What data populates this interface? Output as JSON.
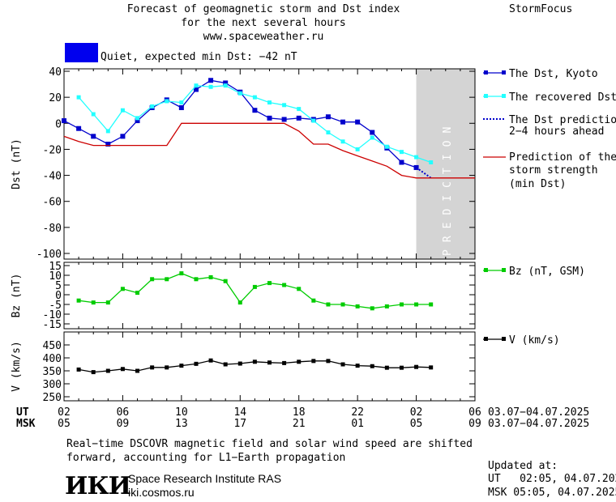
{
  "header": {
    "title_line1": "Forecast of geomagnetic storm and Dst index",
    "title_line2": "for the next several hours",
    "title_line3": "www.spaceweather.ru",
    "brand": "StormFocus",
    "status_text": "Quiet, expected min Dst: −42 nT",
    "status_color": "#0000ee"
  },
  "colors": {
    "dst_kyoto": "#0000cc",
    "dst_recovered": "#22ffff",
    "dst_prediction": "#0000cc",
    "storm_strength": "#cc0000",
    "bz": "#00cc00",
    "v": "#000000",
    "prediction_band": "#d4d4d4"
  },
  "legend": {
    "dst_kyoto": "The Dst, Kyoto",
    "dst_recovered": "The recovered Dst",
    "dst_prediction_l1": "The Dst prediction",
    "dst_prediction_l2": "2−4 hours ahead",
    "storm_l1": "Prediction of the",
    "storm_l2": "storm strength",
    "storm_l3": "(min Dst)",
    "bz": "Bz (nT, GSM)",
    "v": "V (km/s)"
  },
  "prediction_label": "PREDICTION",
  "x_axis": {
    "ut_label": "UT",
    "msk_label": "MSK",
    "date_range_ut": "03.07−04.07.2025",
    "date_range_msk": "03.07−04.07.2025"
  },
  "footer": {
    "note_line1": "Real−time DSCOVR magnetic field and solar wind speed are shifted",
    "note_line2": "forward, accounting for L1−Earth propagation",
    "logo_text": "ИКИ",
    "institute": "Space Research Institute RAS",
    "website": "iki.cosmos.ru",
    "updated_label": "Updated at:",
    "updated_ut": "UT   02:05, 04.07.2025",
    "updated_msk": "MSK 05:05, 04.07.2025"
  },
  "chart_data": [
    {
      "type": "line",
      "ylabel": "Dst (nT)",
      "ylim": [
        -100,
        40
      ],
      "yticks": [
        40,
        20,
        0,
        -20,
        -40,
        -60,
        -80,
        -100
      ],
      "xlim": [
        2,
        30
      ],
      "xticks_ut": [
        "02",
        "06",
        "10",
        "14",
        "18",
        "22",
        "02",
        "06"
      ],
      "xticks_msk": [
        "05",
        "09",
        "13",
        "17",
        "21",
        "01",
        "05",
        "09"
      ],
      "prediction_band": [
        26,
        30
      ],
      "series": [
        {
          "name": "The Dst, Kyoto",
          "x": [
            2,
            3,
            4,
            5,
            6,
            7,
            8,
            9,
            10,
            11,
            12,
            13,
            14,
            15,
            16,
            17,
            18,
            19,
            20,
            21,
            22,
            23,
            24,
            25,
            26
          ],
          "y": [
            2,
            -4,
            -10,
            -16,
            -10,
            2,
            12,
            18,
            12,
            26,
            33,
            31,
            24,
            10,
            4,
            3,
            4,
            3,
            5,
            1,
            1,
            -7,
            -19,
            -30,
            -34
          ]
        },
        {
          "name": "The recovered Dst",
          "x": [
            3,
            4,
            5,
            6,
            7,
            8,
            9,
            10,
            11,
            12,
            13,
            14,
            15,
            16,
            17,
            18,
            19,
            20,
            21,
            22,
            23,
            24,
            25,
            26,
            27
          ],
          "y": [
            20,
            7,
            -6,
            10,
            4,
            13,
            17,
            16,
            29,
            28,
            29,
            23,
            20,
            16,
            14,
            11,
            2,
            -7,
            -14,
            -20,
            -11,
            -18,
            -22,
            -26,
            -30
          ]
        },
        {
          "name": "The Dst prediction 2−4 hours ahead",
          "x": [
            26,
            27
          ],
          "y": [
            -34,
            -42
          ]
        },
        {
          "name": "Prediction of the storm strength (min Dst)",
          "x": [
            2,
            3,
            4,
            5,
            6,
            7,
            8,
            9,
            10,
            11,
            12,
            13,
            14,
            15,
            16,
            17,
            18,
            19,
            20,
            21,
            22,
            23,
            24,
            25,
            26,
            27,
            28,
            29,
            30
          ],
          "y": [
            -10,
            -14,
            -17,
            -17,
            -17,
            -17,
            -17,
            -17,
            0,
            0,
            0,
            0,
            0,
            0,
            0,
            0,
            -6,
            -16,
            -16,
            -21,
            -25,
            -29,
            -33,
            -40,
            -42,
            -42,
            -42,
            -42,
            -42
          ]
        }
      ]
    },
    {
      "type": "line",
      "ylabel": "Bz (nT)",
      "ylim": [
        -15,
        15
      ],
      "yticks": [
        15,
        10,
        5,
        0,
        -5,
        -10,
        -15
      ],
      "xlim": [
        2,
        30
      ],
      "series": [
        {
          "name": "Bz (nT, GSM)",
          "x": [
            3,
            4,
            5,
            6,
            7,
            8,
            9,
            10,
            11,
            12,
            13,
            14,
            15,
            16,
            17,
            18,
            19,
            20,
            21,
            22,
            23,
            24,
            25,
            26,
            27
          ],
          "y": [
            -3,
            -4,
            -4,
            3,
            1,
            8,
            8,
            11,
            8,
            9,
            7,
            -4,
            4,
            6,
            5,
            3,
            -3,
            -5,
            -5,
            -6,
            -7,
            -6,
            -5,
            -5,
            -5
          ]
        }
      ]
    },
    {
      "type": "line",
      "ylabel": "V (km/s)",
      "ylim": [
        250,
        500
      ],
      "yticks": [
        450,
        400,
        350,
        300,
        250
      ],
      "xlim": [
        2,
        30
      ],
      "series": [
        {
          "name": "V (km/s)",
          "x": [
            3,
            4,
            5,
            6,
            7,
            8,
            9,
            10,
            11,
            12,
            13,
            14,
            15,
            16,
            17,
            18,
            19,
            20,
            21,
            22,
            23,
            24,
            25,
            26,
            27
          ],
          "y": [
            355,
            345,
            350,
            357,
            350,
            363,
            363,
            370,
            377,
            390,
            375,
            378,
            385,
            382,
            380,
            385,
            388,
            388,
            375,
            370,
            368,
            362,
            362,
            365,
            363
          ]
        }
      ]
    }
  ]
}
